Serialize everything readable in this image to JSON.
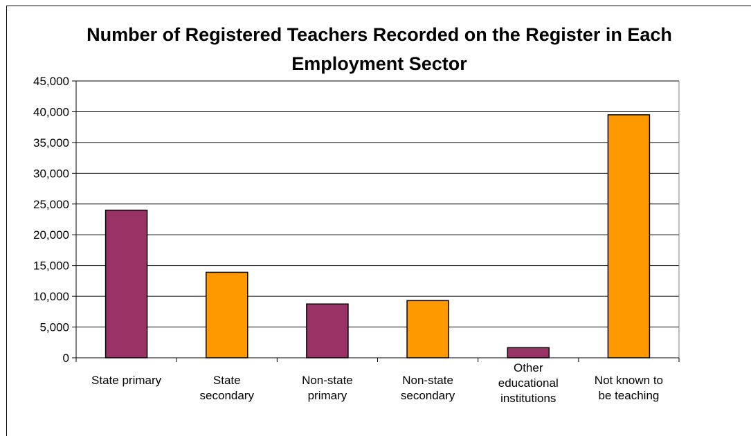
{
  "chart_data": {
    "type": "bar",
    "title_lines": [
      "Number of Registered Teachers Recorded on the Register in Each",
      "Employment Sector"
    ],
    "categories": [
      [
        "State primary"
      ],
      [
        "State",
        "secondary"
      ],
      [
        "Non-state",
        "primary"
      ],
      [
        "Non-state",
        "secondary"
      ],
      [
        "Other",
        "educational",
        "institutions"
      ],
      [
        "Not known to",
        "be teaching"
      ]
    ],
    "values": [
      24000,
      13900,
      8750,
      9300,
      1650,
      39500
    ],
    "bar_colors": [
      "#993366",
      "#ff9900",
      "#993366",
      "#ff9900",
      "#993366",
      "#ff9900"
    ],
    "ylim": [
      0,
      45000
    ],
    "yticks": [
      0,
      5000,
      10000,
      15000,
      20000,
      25000,
      30000,
      35000,
      40000,
      45000
    ],
    "ytick_labels": [
      "0",
      "5,000",
      "10,000",
      "15,000",
      "20,000",
      "25,000",
      "30,000",
      "35,000",
      "40,000",
      "45,000"
    ],
    "grid": true,
    "legend": "none"
  }
}
